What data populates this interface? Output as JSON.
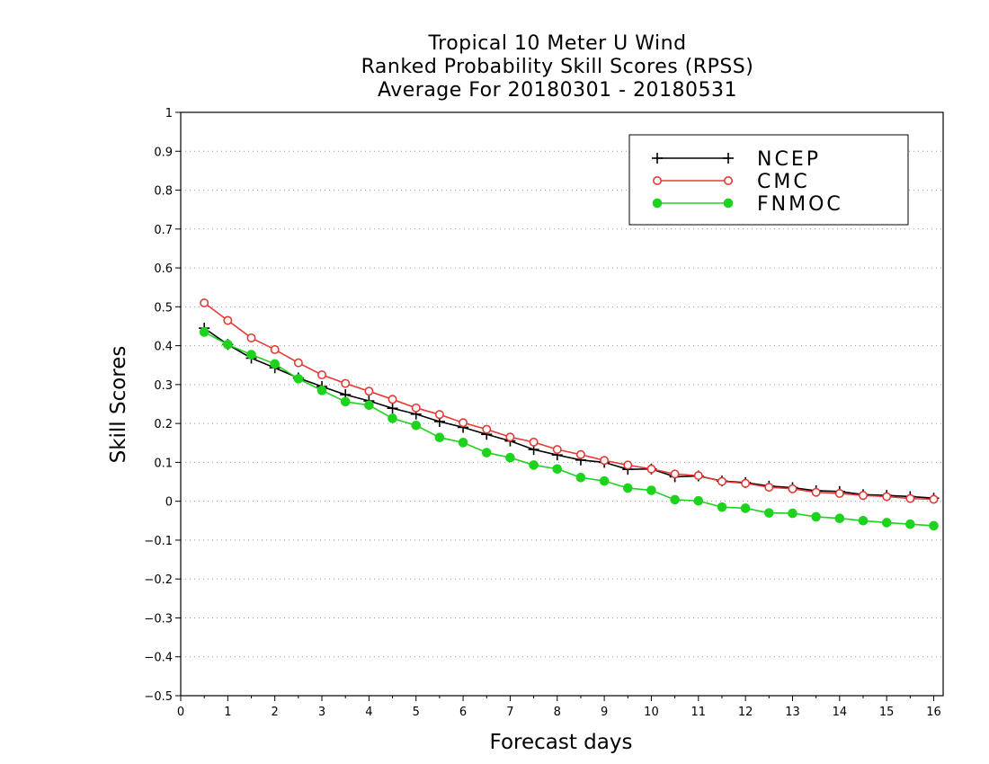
{
  "chart_data": {
    "type": "line",
    "title": [
      "Tropical 10 Meter U Wind",
      "Ranked Probability Skill Scores (RPSS)",
      "Average For 20180301 - 20180531"
    ],
    "xlabel": "Forecast days",
    "ylabel": "Skill Scores",
    "xlim": [
      0,
      16.2
    ],
    "ylim": [
      -0.5,
      1
    ],
    "x_ticks": [
      0,
      1,
      2,
      3,
      4,
      5,
      6,
      7,
      8,
      9,
      10,
      11,
      12,
      13,
      14,
      15,
      16
    ],
    "y_ticks": [
      -0.5,
      -0.4,
      -0.3,
      -0.2,
      -0.1,
      0,
      0.1,
      0.2,
      0.3,
      0.4,
      0.5,
      0.6,
      0.7,
      0.8,
      0.9,
      1
    ],
    "y_tick_labels": [
      "−0.5",
      "−0.4",
      "−0.3",
      "−0.2",
      "−0.1",
      "0",
      "0.1",
      "0.2",
      "0.3",
      "0.4",
      "0.5",
      "0.6",
      "0.7",
      "0.8",
      "0.9",
      "1"
    ],
    "grid": "horizontal-dotted",
    "legend_position": "top-right",
    "x": [
      0.5,
      1,
      1.5,
      2,
      2.5,
      3,
      3.5,
      4,
      4.5,
      5,
      5.5,
      6,
      6.5,
      7,
      7.5,
      8,
      8.5,
      9,
      9.5,
      10,
      10.5,
      11,
      11.5,
      12,
      12.5,
      13,
      13.5,
      14,
      14.5,
      15,
      15.5,
      16
    ],
    "series": [
      {
        "name": "NCEP",
        "color": "#000000",
        "marker": "plus",
        "values": [
          0.445,
          0.403,
          0.368,
          0.343,
          0.317,
          0.295,
          0.274,
          0.258,
          0.239,
          0.224,
          0.205,
          0.19,
          0.172,
          0.155,
          0.133,
          0.119,
          0.106,
          0.1,
          0.082,
          0.083,
          0.063,
          0.065,
          0.052,
          0.048,
          0.039,
          0.035,
          0.027,
          0.025,
          0.017,
          0.015,
          0.012,
          0.008
        ]
      },
      {
        "name": "CMC",
        "color": "#e53935",
        "marker": "open-circle",
        "values": [
          0.51,
          0.465,
          0.42,
          0.39,
          0.356,
          0.325,
          0.303,
          0.283,
          0.262,
          0.24,
          0.223,
          0.202,
          0.185,
          0.165,
          0.152,
          0.133,
          0.12,
          0.105,
          0.093,
          0.083,
          0.07,
          0.066,
          0.051,
          0.046,
          0.036,
          0.032,
          0.023,
          0.02,
          0.015,
          0.012,
          0.007,
          0.005
        ]
      },
      {
        "name": "FNMOC",
        "color": "#1ed31e",
        "marker": "filled-circle",
        "values": [
          0.435,
          0.403,
          0.377,
          0.353,
          0.315,
          0.285,
          0.256,
          0.247,
          0.213,
          0.195,
          0.164,
          0.151,
          0.125,
          0.112,
          0.093,
          0.083,
          0.061,
          0.052,
          0.034,
          0.028,
          0.004,
          0.001,
          -0.015,
          -0.018,
          -0.03,
          -0.031,
          -0.04,
          -0.044,
          -0.05,
          -0.055,
          -0.059,
          -0.063
        ]
      }
    ]
  }
}
